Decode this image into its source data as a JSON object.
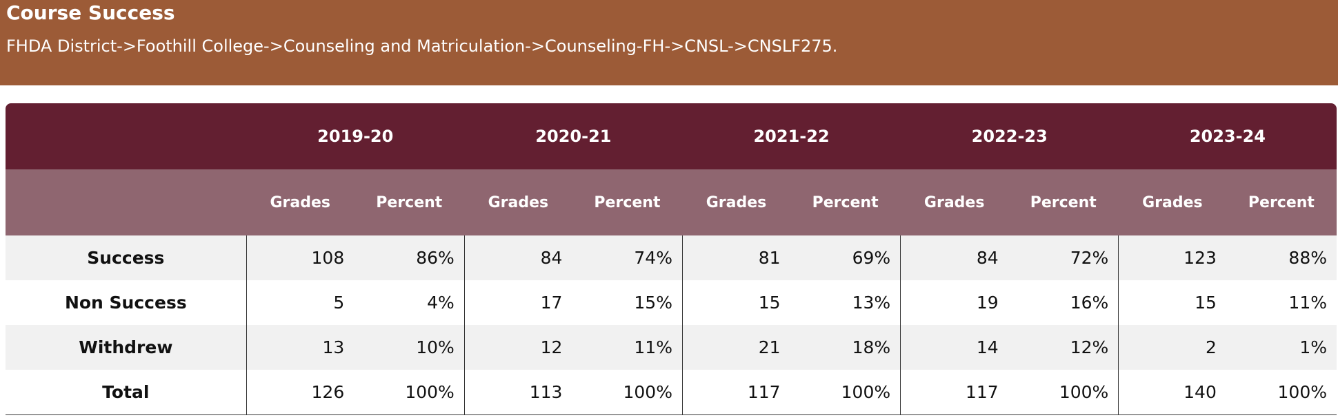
{
  "header": {
    "title": "Course Success",
    "breadcrumb": "FHDA District->Foothill College->Counseling and Matriculation->Counseling-FH->CNSL->CNSLF275."
  },
  "table": {
    "years": [
      "2019-20",
      "2020-21",
      "2021-22",
      "2022-23",
      "2023-24"
    ],
    "sub_headers": [
      "Grades",
      "Percent"
    ],
    "rows": [
      {
        "label": "Success",
        "cells": [
          [
            "108",
            "86%"
          ],
          [
            "84",
            "74%"
          ],
          [
            "81",
            "69%"
          ],
          [
            "84",
            "72%"
          ],
          [
            "123",
            "88%"
          ]
        ]
      },
      {
        "label": "Non Success",
        "cells": [
          [
            "5",
            "4%"
          ],
          [
            "17",
            "15%"
          ],
          [
            "15",
            "13%"
          ],
          [
            "19",
            "16%"
          ],
          [
            "15",
            "11%"
          ]
        ]
      },
      {
        "label": "Withdrew",
        "cells": [
          [
            "13",
            "10%"
          ],
          [
            "12",
            "11%"
          ],
          [
            "21",
            "18%"
          ],
          [
            "14",
            "12%"
          ],
          [
            "2",
            "1%"
          ]
        ]
      },
      {
        "label": "Total",
        "cells": [
          [
            "126",
            "100%"
          ],
          [
            "113",
            "100%"
          ],
          [
            "117",
            "100%"
          ],
          [
            "117",
            "100%"
          ],
          [
            "140",
            "100%"
          ]
        ]
      }
    ]
  },
  "colors": {
    "banner": "#9c5b37",
    "year_header": "#631f31",
    "sub_header": "#8f6670",
    "striped_row": "#f1f1f1"
  }
}
